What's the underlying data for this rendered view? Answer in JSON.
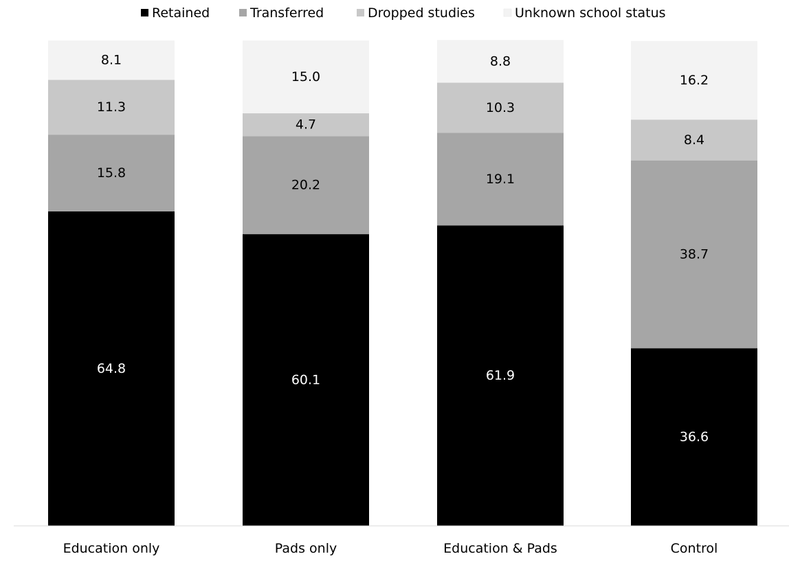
{
  "chart_data": {
    "type": "bar",
    "stacked": true,
    "title": "",
    "xlabel": "",
    "ylabel": "",
    "ylim": [
      0,
      100
    ],
    "grid": false,
    "legend_position": "top",
    "categories": [
      "Education only",
      "Pads only",
      "Education & Pads",
      "Control"
    ],
    "series": [
      {
        "name": "Retained",
        "color": "#000000",
        "label_color": "#ffffff",
        "values": [
          64.8,
          60.1,
          61.9,
          36.6
        ]
      },
      {
        "name": "Transferred",
        "color": "#a6a6a6",
        "label_color": "#000000",
        "values": [
          15.8,
          20.2,
          19.1,
          38.7
        ]
      },
      {
        "name": "Dropped studies",
        "color": "#c8c8c8",
        "label_color": "#000000",
        "values": [
          11.3,
          4.7,
          10.3,
          8.4
        ]
      },
      {
        "name": "Unknown school status",
        "color": "#f3f3f3",
        "label_color": "#000000",
        "values": [
          8.1,
          15.0,
          8.8,
          16.2
        ]
      }
    ],
    "data_labels": [
      [
        "64.8",
        "60.1",
        "61.9",
        "36.6"
      ],
      [
        "15.8",
        "20.2",
        "19.1",
        "38.7"
      ],
      [
        "11.3",
        "4.7",
        "10.3",
        "8.4"
      ],
      [
        "8.1",
        "15.0",
        "8.8",
        "16.2"
      ]
    ]
  }
}
